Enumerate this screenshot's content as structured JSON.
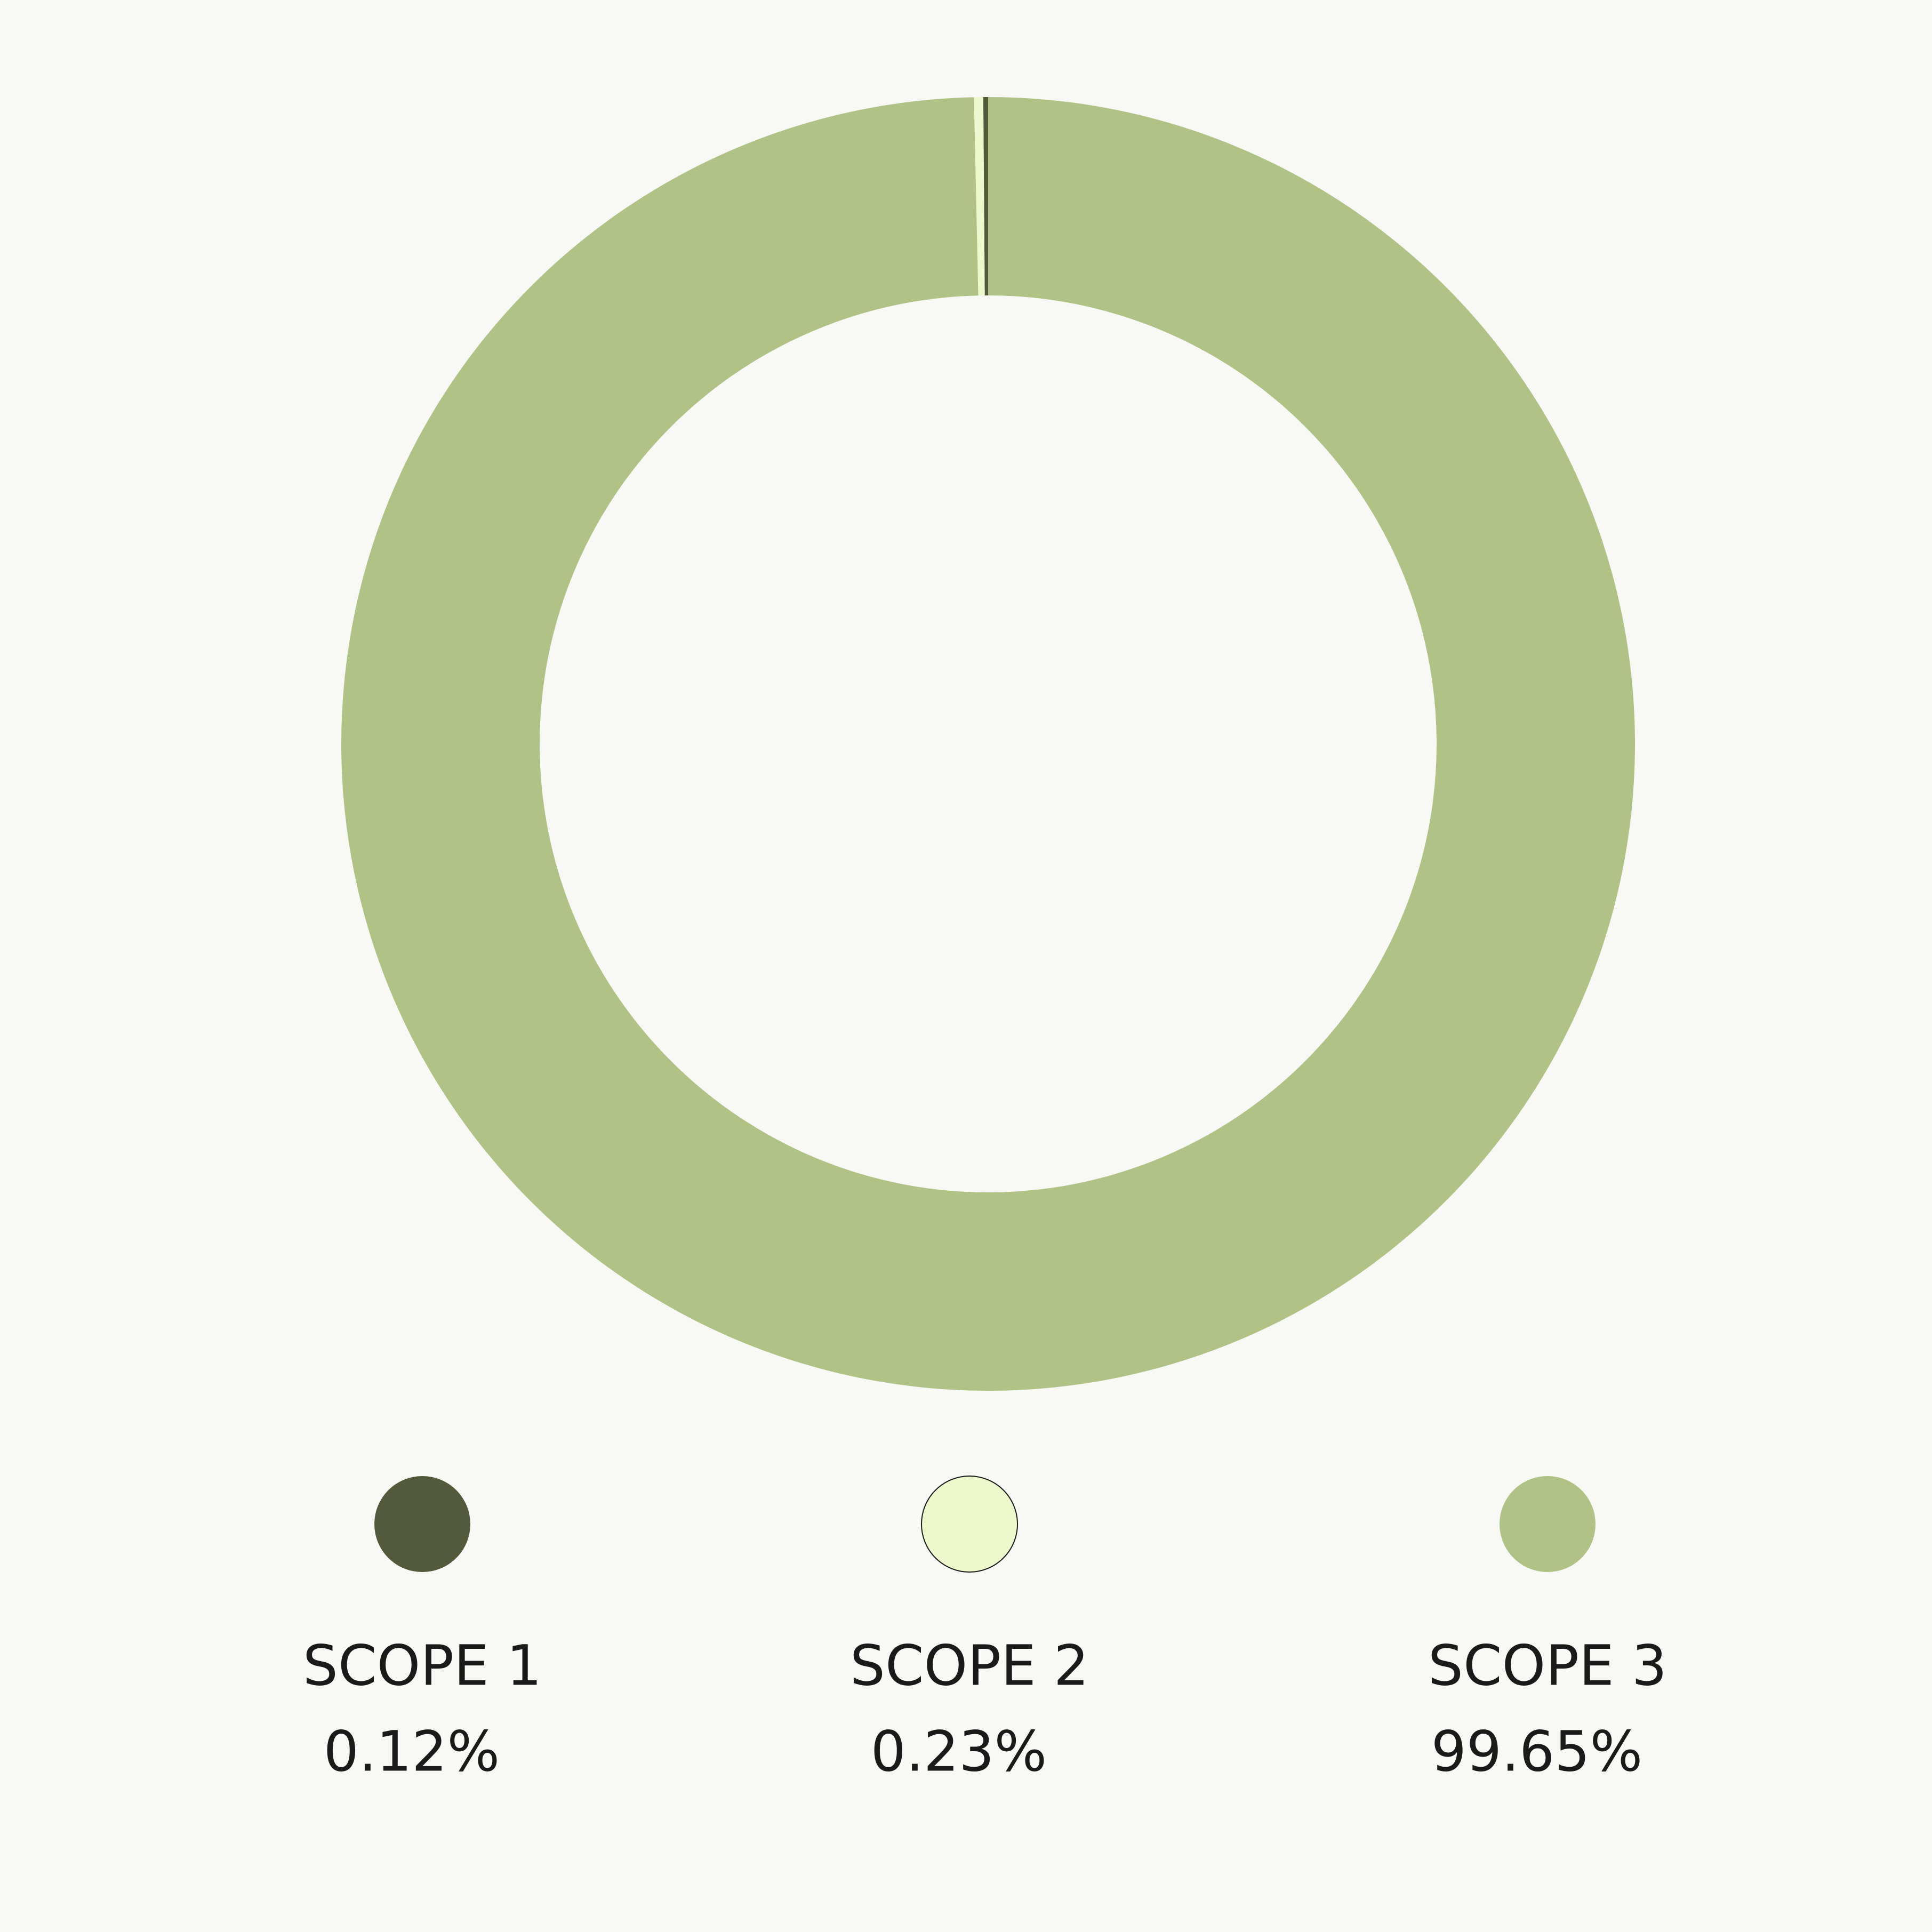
{
  "chart_data": {
    "type": "pie",
    "categories": [
      "SCOPE 1",
      "SCOPE 2",
      "SCOPE 3"
    ],
    "values": [
      0.12,
      0.23,
      99.65
    ],
    "value_labels": [
      "0.12%",
      "0.23%",
      "99.65%"
    ],
    "colors": [
      "#53593b",
      "#edf9cc",
      "#b0c286"
    ]
  }
}
